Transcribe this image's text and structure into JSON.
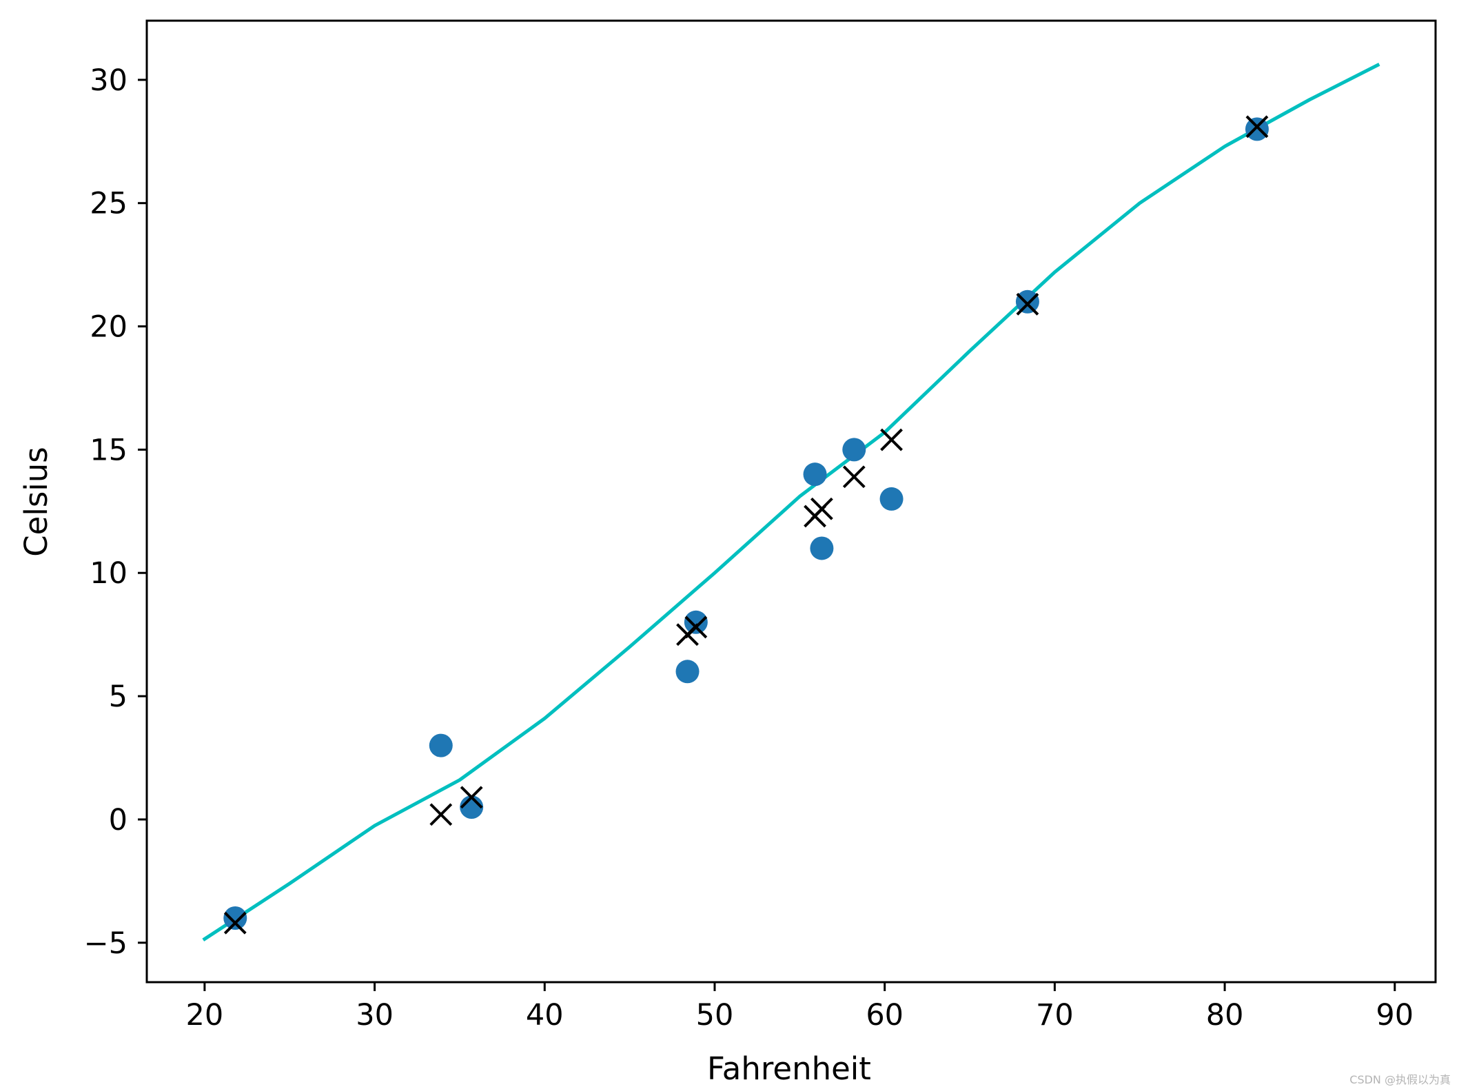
{
  "chart_data": {
    "type": "scatter",
    "title": "",
    "xlabel": "Fahrenheit",
    "ylabel": "Celsius",
    "xlim": [
      16.6,
      92.4
    ],
    "ylim": [
      -6.6,
      32.4
    ],
    "xticks": [
      20,
      30,
      40,
      50,
      60,
      70,
      80,
      90
    ],
    "xtick_labels": [
      "20",
      "30",
      "40",
      "50",
      "60",
      "70",
      "80",
      "90"
    ],
    "yticks": [
      -5,
      0,
      5,
      10,
      15,
      20,
      25,
      30
    ],
    "ytick_labels": [
      "−5",
      "0",
      "5",
      "10",
      "15",
      "20",
      "25",
      "30"
    ],
    "grid": false,
    "legend": false,
    "series": [
      {
        "kind": "scatter",
        "marker": "circle",
        "color": "#1f77b4",
        "x": [
          35.7,
          55.9,
          58.2,
          81.9,
          56.3,
          48.9,
          33.9,
          21.8,
          48.4,
          60.4,
          68.4
        ],
        "y": [
          0.5,
          14.0,
          15.0,
          28.0,
          11.0,
          8.0,
          3.0,
          -4.0,
          6.0,
          13.0,
          21.0
        ]
      },
      {
        "kind": "scatter",
        "marker": "x",
        "color": "#000000",
        "x": [
          35.7,
          55.9,
          58.2,
          81.9,
          56.3,
          48.9,
          33.9,
          21.8,
          48.4,
          60.4,
          68.4
        ],
        "y": [
          0.9,
          12.3,
          13.9,
          28.1,
          12.6,
          7.8,
          0.2,
          -4.2,
          7.5,
          15.4,
          20.9
        ]
      },
      {
        "kind": "line",
        "color": "#00bfbf",
        "x": [
          20,
          25,
          30,
          35,
          40,
          45,
          50,
          55,
          60,
          65,
          70,
          75,
          80,
          85,
          89
        ],
        "y": [
          -4.85,
          -2.6,
          -0.25,
          1.6,
          4.1,
          7.0,
          10.0,
          13.1,
          15.7,
          19.0,
          22.2,
          25.0,
          27.3,
          29.2,
          30.6
        ]
      }
    ]
  },
  "watermark": "CSDN @执假以为真"
}
